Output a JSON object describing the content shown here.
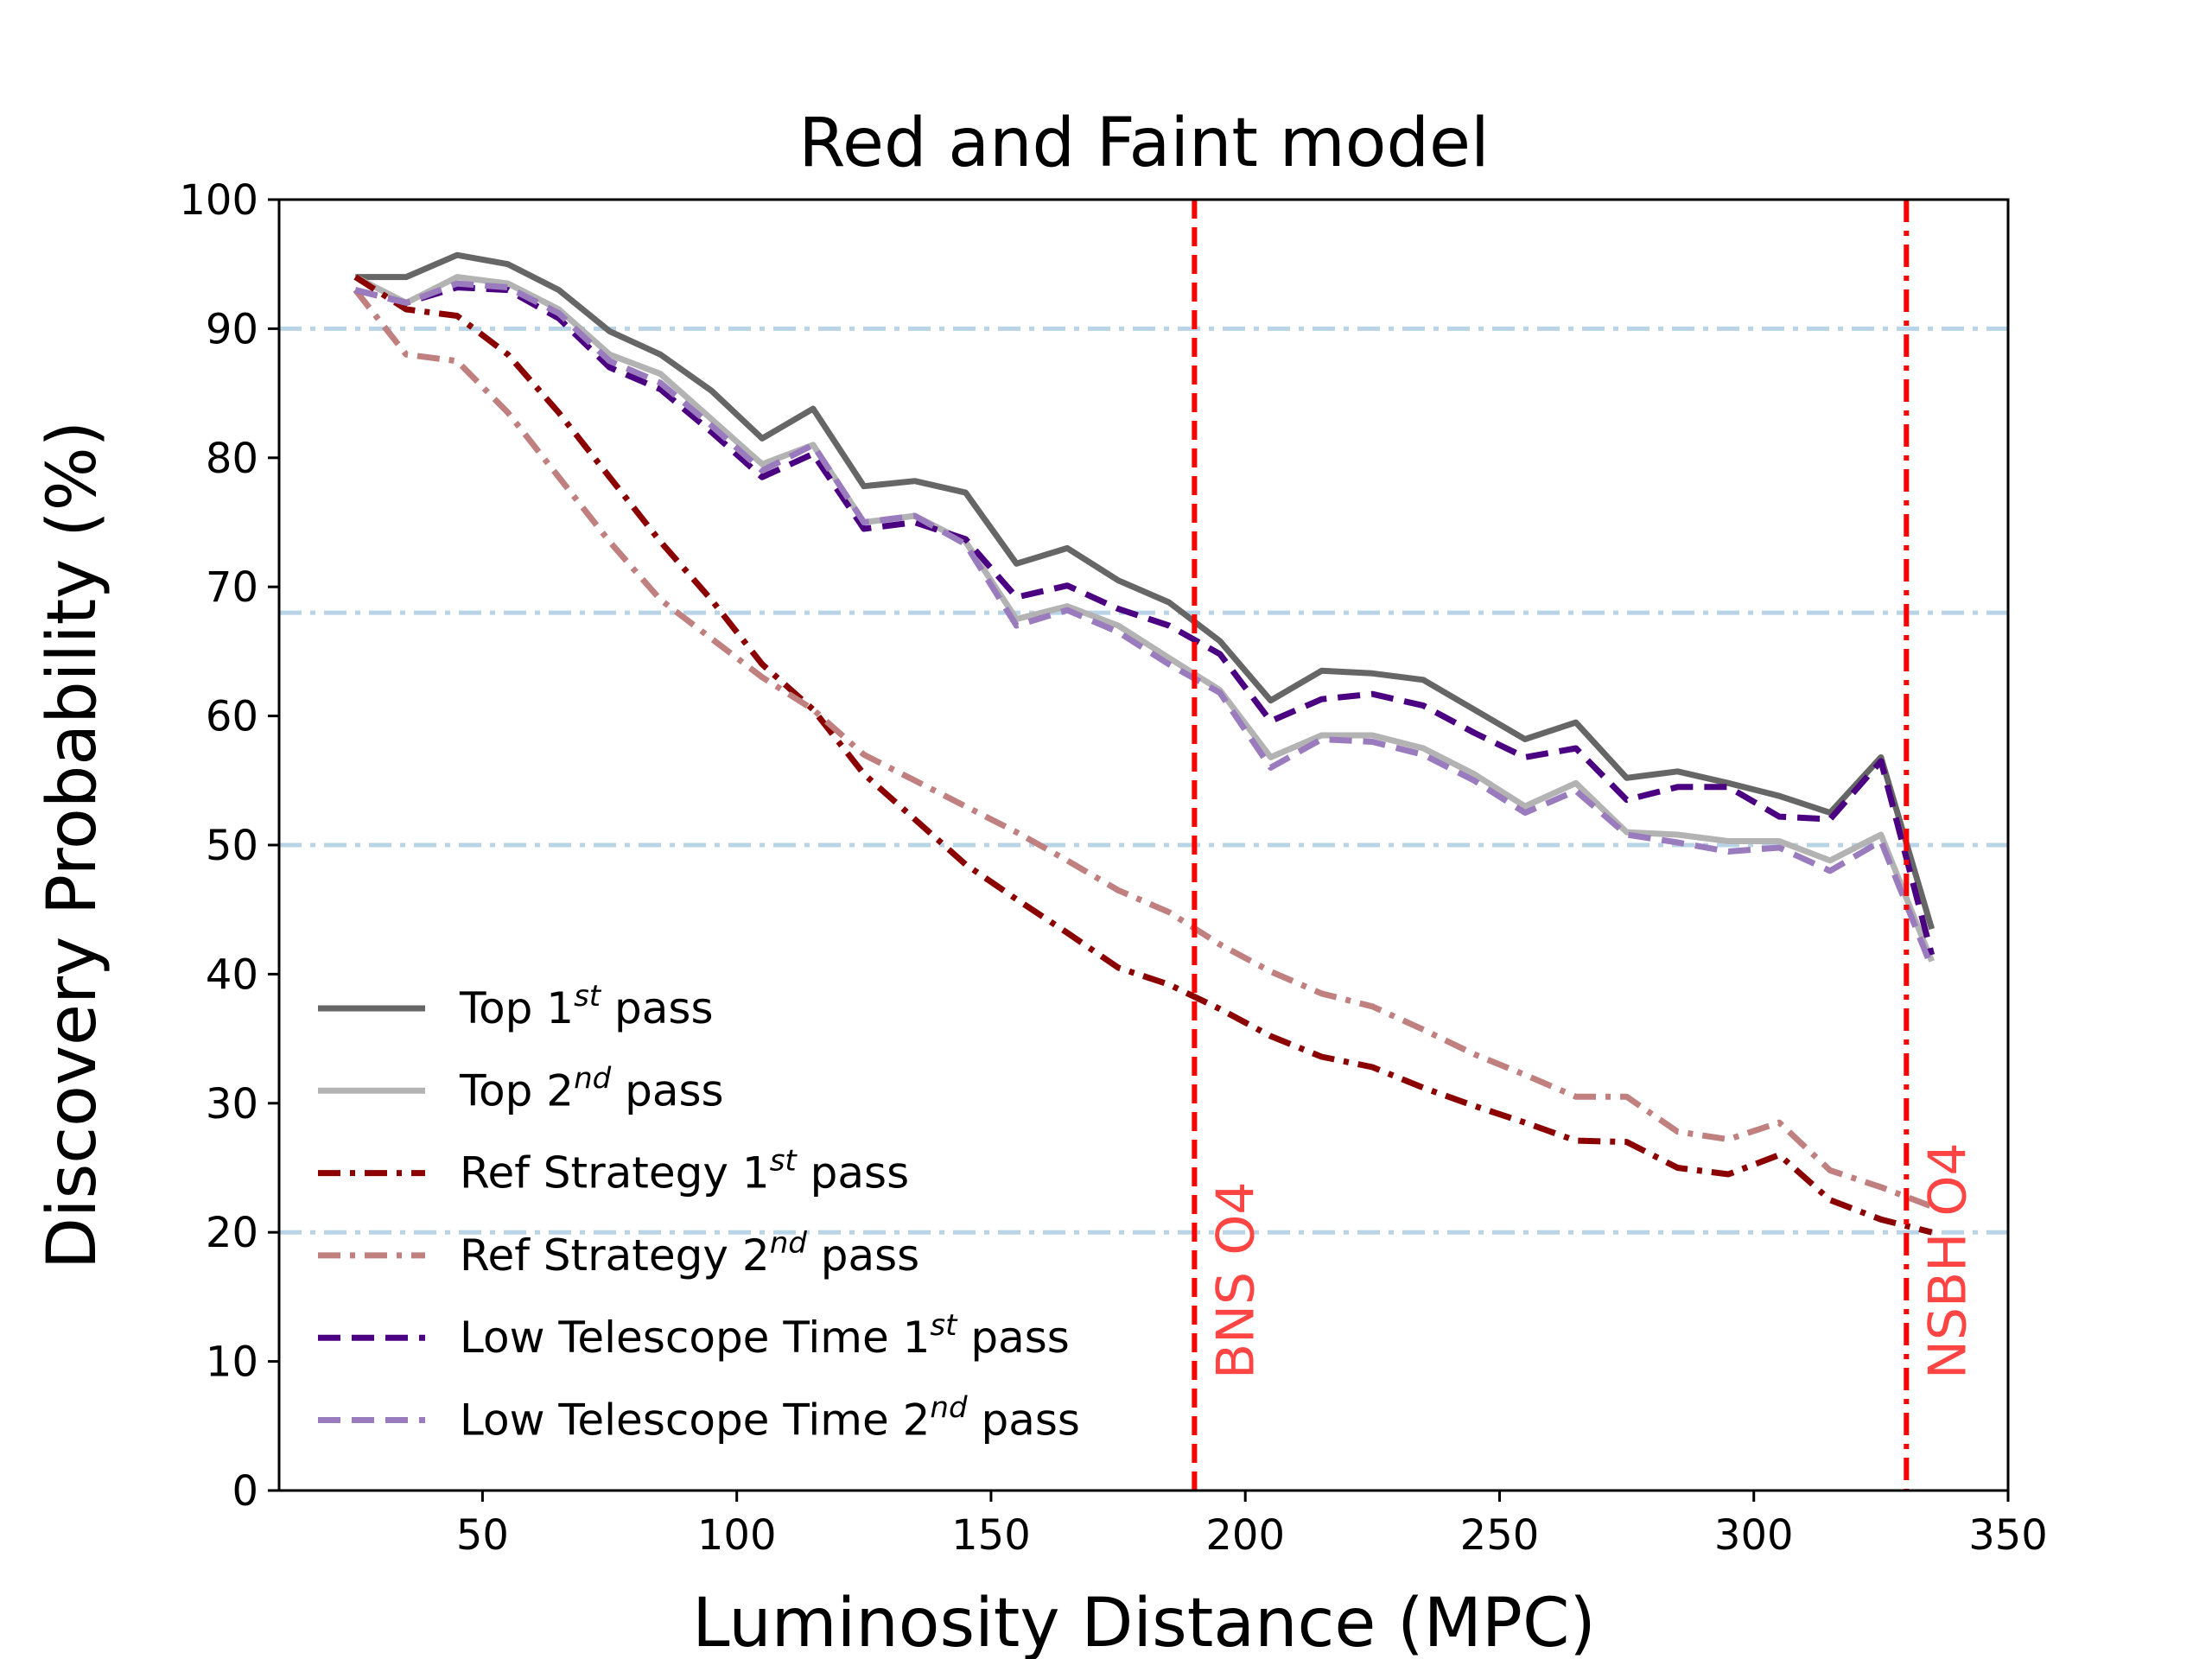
{
  "chart_data": {
    "type": "line",
    "title": "Red and Faint model",
    "xlabel": "Luminosity Distance (MPC)",
    "ylabel": "Discovery Probability (%)",
    "xlim": [
      10,
      350
    ],
    "ylim": [
      0,
      100
    ],
    "x_ticks": [
      50,
      100,
      150,
      200,
      250,
      300,
      350
    ],
    "y_ticks": [
      0,
      10,
      20,
      30,
      40,
      50,
      60,
      70,
      80,
      90,
      100
    ],
    "x_tick_labels": [
      "50",
      "100",
      "150",
      "200",
      "250",
      "300",
      "350"
    ],
    "y_tick_labels": [
      "0",
      "10",
      "20",
      "30",
      "40",
      "50",
      "60",
      "70",
      "80",
      "90",
      "100"
    ],
    "grid": false,
    "legend_position": "lower-left",
    "x": [
      25,
      35,
      45,
      55,
      65,
      75,
      85,
      95,
      105,
      115,
      125,
      135,
      145,
      155,
      165,
      175,
      185,
      195,
      205,
      215,
      225,
      235,
      245,
      255,
      265,
      275,
      285,
      295,
      305,
      315,
      325,
      335
    ],
    "series": [
      {
        "name": "Top 1st pass",
        "label_main": "Top 1",
        "label_sup": "st",
        "label_tail": " pass",
        "color": "#666666",
        "dash": "solid",
        "values": [
          94,
          94,
          95.7,
          95,
          93,
          89.8,
          88,
          85.2,
          81.5,
          83.8,
          77.8,
          78.2,
          77.3,
          71.8,
          73,
          70.5,
          68.8,
          65.8,
          61.2,
          63.5,
          63.3,
          62.8,
          60.5,
          58.2,
          59.5,
          55.2,
          55.7,
          54.8,
          53.8,
          52.5,
          56.8,
          43.5
        ]
      },
      {
        "name": "Top 2nd pass",
        "label_main": "Top 2",
        "label_sup": "nd",
        "label_tail": " pass",
        "color": "#b3b3b3",
        "dash": "solid",
        "values": [
          94,
          92,
          94,
          93.5,
          91.5,
          88,
          86.5,
          83,
          79.5,
          81,
          75,
          75.5,
          73.5,
          67.5,
          68.5,
          67,
          64.5,
          62,
          56.8,
          58.5,
          58.5,
          57.5,
          55.5,
          53,
          54.8,
          51,
          50.8,
          50.3,
          50.3,
          48.8,
          50.8,
          41
        ]
      },
      {
        "name": "Ref Strategy 1st pass",
        "label_main": "Ref Strategy 1",
        "label_sup": "st",
        "label_tail": " pass",
        "color": "#8b0000",
        "dash": "dashdot",
        "values": [
          94,
          91.5,
          91,
          88,
          83.5,
          78.5,
          73.5,
          69,
          64,
          60.5,
          55.5,
          52,
          48.5,
          45.8,
          43.2,
          40.5,
          39.2,
          37.3,
          35.2,
          33.6,
          32.8,
          31.2,
          29.8,
          28.5,
          27.1,
          27,
          25,
          24.5,
          26,
          22.5,
          21,
          20
        ]
      },
      {
        "name": "Ref Strategy 2nd pass",
        "label_main": "Ref Strategy 2",
        "label_sup": "nd",
        "label_tail": " pass",
        "color": "#c08080",
        "dash": "dashdot",
        "values": [
          93,
          88,
          87.5,
          83.5,
          78.5,
          73.5,
          69,
          66,
          63,
          60.5,
          57,
          55,
          53,
          51,
          48.8,
          46.5,
          44.8,
          42.3,
          40.2,
          38.5,
          37.5,
          35.7,
          33.8,
          32.2,
          30.5,
          30.5,
          27.8,
          27.2,
          28.5,
          24.8,
          23.5,
          22
        ]
      },
      {
        "name": "Low Telescope Time 1st pass",
        "label_main": "Low Telescope Time 1",
        "label_sup": "st",
        "label_tail": " pass",
        "color": "#4b0082",
        "dash": "dashed",
        "values": [
          93,
          92,
          93.2,
          93,
          90.8,
          87,
          85.3,
          82,
          78.5,
          80.3,
          74.5,
          75,
          73.7,
          69.2,
          70.1,
          68.3,
          67,
          64.8,
          59.6,
          61.3,
          61.7,
          60.8,
          58.7,
          56.8,
          57.5,
          53.5,
          54.5,
          54.5,
          52.2,
          52,
          56.5,
          41.5
        ]
      },
      {
        "name": "Low Telescope Time 2nd pass",
        "label_main": "Low Telescope Time 2",
        "label_sup": "nd",
        "label_tail": " pass",
        "color": "#9a7bbd",
        "dash": "dashed",
        "values": [
          93,
          92,
          93.5,
          93.2,
          91.2,
          87.5,
          85.8,
          82.5,
          79,
          81,
          75,
          75.5,
          73.3,
          67,
          68.2,
          66.5,
          64,
          61.8,
          56,
          58.2,
          58,
          57,
          55,
          52.5,
          54.2,
          50.8,
          50.2,
          49.5,
          49.8,
          48,
          50.3,
          40.5
        ]
      }
    ],
    "hlines": [
      {
        "y": 90,
        "color": "#b8d4e6",
        "dash": "dashdot"
      },
      {
        "y": 68,
        "color": "#b8d4e6",
        "dash": "dashdot"
      },
      {
        "y": 50,
        "color": "#b8d4e6",
        "dash": "dashdot"
      },
      {
        "y": 20,
        "color": "#b8d4e6",
        "dash": "dashdot"
      }
    ],
    "vlines": [
      {
        "x": 190,
        "label": "BNS O4",
        "color": "#ff0000",
        "label_color": "#ff4444",
        "dash": "dashed"
      },
      {
        "x": 330,
        "label": "NSBH O4",
        "color": "#ff0000",
        "label_color": "#ff4444",
        "dash": "dashdot"
      }
    ]
  }
}
